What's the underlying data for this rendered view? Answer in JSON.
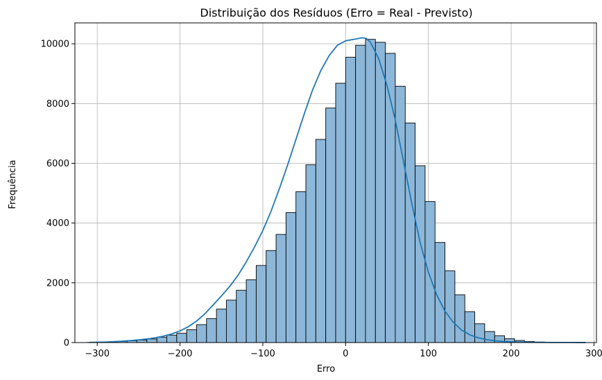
{
  "chart_data": {
    "type": "bar",
    "title": "Distribuição dos Resíduos (Erro = Real - Previsto)",
    "xlabel": "Erro",
    "ylabel": "Frequência",
    "xlim": [
      -327,
      303
    ],
    "ylim": [
      0,
      10700
    ],
    "xticks": [
      -300,
      -200,
      -100,
      0,
      100,
      200,
      300
    ],
    "xtick_labels": [
      "−300",
      "−200",
      "−100",
      "0",
      "100",
      "200",
      "300"
    ],
    "yticks": [
      0,
      2000,
      4000,
      6000,
      8000,
      10000
    ],
    "ytick_labels": [
      "0",
      "2000",
      "4000",
      "6000",
      "8000",
      "10000"
    ],
    "grid": true,
    "bin_start": -312,
    "bin_width": 12,
    "values": [
      5,
      12,
      25,
      40,
      60,
      85,
      120,
      180,
      250,
      310,
      430,
      600,
      800,
      1120,
      1420,
      1750,
      2100,
      2580,
      3080,
      3620,
      4350,
      5050,
      5950,
      6800,
      7850,
      8680,
      9550,
      9950,
      10150,
      10050,
      9680,
      8580,
      7350,
      5920,
      4720,
      3350,
      2400,
      1600,
      1030,
      630,
      370,
      230,
      130,
      70,
      35,
      18,
      9,
      5,
      3,
      2
    ],
    "kde_x": [
      -310,
      -300,
      -290,
      -280,
      -270,
      -260,
      -250,
      -240,
      -230,
      -220,
      -210,
      -200,
      -190,
      -180,
      -170,
      -160,
      -150,
      -140,
      -130,
      -120,
      -110,
      -100,
      -90,
      -80,
      -70,
      -60,
      -50,
      -40,
      -30,
      -20,
      -10,
      0,
      10,
      20,
      25,
      30,
      40,
      50,
      60,
      70,
      80,
      90,
      100,
      110,
      120,
      130,
      140,
      150,
      160,
      170,
      180,
      190,
      200,
      210,
      220,
      230,
      240,
      250,
      260,
      270,
      280,
      290
    ],
    "kde_y": [
      5,
      10,
      18,
      30,
      45,
      65,
      90,
      120,
      160,
      215,
      290,
      390,
      530,
      720,
      960,
      1260,
      1560,
      1880,
      2250,
      2700,
      3200,
      3750,
      4400,
      5150,
      5950,
      6800,
      7650,
      8450,
      9100,
      9600,
      9950,
      10100,
      10150,
      10200,
      10180,
      10050,
      9500,
      8600,
      7450,
      6050,
      4650,
      3350,
      2350,
      1600,
      1050,
      680,
      420,
      260,
      160,
      100,
      60,
      38,
      25,
      16,
      10,
      7,
      5,
      3,
      2,
      2,
      1,
      1
    ],
    "colors": {
      "bar_fill": "#8db7d8",
      "bar_edge": "#000000",
      "kde_line": "#1f77b4",
      "grid": "#b0b0b0"
    }
  }
}
